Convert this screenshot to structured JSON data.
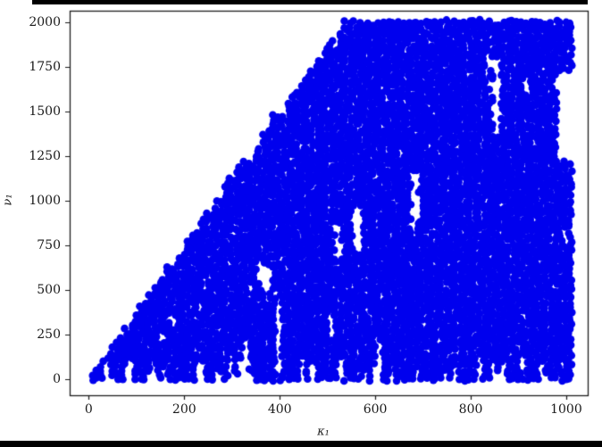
{
  "figure": {
    "background": "#ffffff",
    "top_bar_color": "#000000",
    "bottom_bar_color": "#000000",
    "frame_color": "#1c1c1c",
    "tick_color": "#1a1a1a"
  },
  "chart_data": {
    "type": "scatter",
    "title": "",
    "xlabel": "κ₁",
    "ylabel": "ν₁",
    "xlim": [
      -40,
      1045
    ],
    "ylim": [
      -90,
      2065
    ],
    "xticks": [
      0,
      200,
      400,
      600,
      800,
      1000
    ],
    "yticks": [
      0,
      250,
      500,
      750,
      1000,
      1250,
      1500,
      1750,
      2000
    ],
    "grid": false,
    "legend": null,
    "marker": {
      "shape": "circle",
      "color": "#0000ee",
      "radius_px": 4.3
    },
    "plot_description": "Extremely dense scatter of blue filled circles covering the region 0 <= x <= 1010, 0 <= y <= min(2020, ~3.71x). Saturated to the cap y=2020 for x >= ~545. Jagged comb-like lower edge at y=0, scattered white vertical slot gaps inside the mass, large white notch near right edge around x=980-1012, y=1225-1725.",
    "density_model": {
      "x_min": 8,
      "x_max": 1008,
      "x_step": 10,
      "y_step": 25,
      "upper_slope": 3.71,
      "y_cap": 2020,
      "full_height_from_x": 545,
      "comb_probability": 0.3,
      "comb_max_offset": 120,
      "micro_gap_probability": 0.06,
      "seed": 42,
      "gaps": [
        [
          146,
          157,
          225,
          275
        ],
        [
          170,
          183,
          290,
          350
        ],
        [
          292,
          305,
          0,
          150
        ],
        [
          323,
          335,
          0,
          210
        ],
        [
          335,
          344,
          450,
          540
        ],
        [
          363,
          381,
          490,
          625
        ],
        [
          391,
          404,
          0,
          470
        ],
        [
          473,
          479,
          0,
          75
        ],
        [
          516,
          529,
          685,
          860
        ],
        [
          554,
          572,
          715,
          960
        ],
        [
          600,
          613,
          0,
          220
        ],
        [
          619,
          628,
          1250,
          1310
        ],
        [
          675,
          688,
          840,
          1160
        ],
        [
          834,
          838,
          1525,
          1825
        ],
        [
          847,
          862,
          1375,
          1800
        ],
        [
          905,
          918,
          25,
          125
        ],
        [
          980,
          1012,
          1225,
          1725
        ]
      ]
    }
  }
}
